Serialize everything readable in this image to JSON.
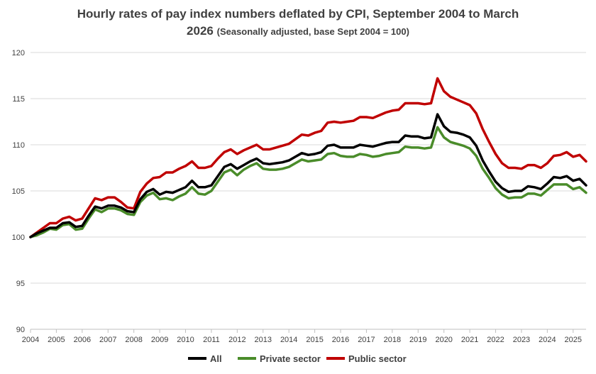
{
  "chart_data": {
    "type": "line",
    "title": "Hourly rates of pay index numbers  deflated by CPI, September 2004 to March",
    "title_line2": "2026",
    "subtitle": "(Seasonally adjusted, base Sept 2004 = 100)",
    "xlabel": "",
    "ylabel": "",
    "ylim": [
      90,
      120
    ],
    "yticks": [
      90,
      95,
      100,
      105,
      110,
      115,
      120
    ],
    "xlim": [
      2004.0,
      2025.5
    ],
    "xticks": [
      2004,
      2005,
      2006,
      2007,
      2008,
      2009,
      2010,
      2011,
      2012,
      2013,
      2014,
      2015,
      2016,
      2017,
      2018,
      2019,
      2020,
      2021,
      2022,
      2023,
      2024,
      2025
    ],
    "grid": "horizontal",
    "legend_position": "bottom",
    "series": [
      {
        "name": "All",
        "color": "#000000",
        "points": [
          [
            2004.0,
            100.0
          ],
          [
            2004.25,
            100.4
          ],
          [
            2004.5,
            100.7
          ],
          [
            2004.75,
            101.0
          ],
          [
            2005.0,
            101.0
          ],
          [
            2005.25,
            101.5
          ],
          [
            2005.5,
            101.6
          ],
          [
            2005.75,
            101.1
          ],
          [
            2006.0,
            101.2
          ],
          [
            2006.25,
            102.3
          ],
          [
            2006.5,
            103.3
          ],
          [
            2006.75,
            103.1
          ],
          [
            2007.0,
            103.4
          ],
          [
            2007.25,
            103.4
          ],
          [
            2007.5,
            103.2
          ],
          [
            2007.75,
            102.8
          ],
          [
            2008.0,
            102.7
          ],
          [
            2008.25,
            104.1
          ],
          [
            2008.5,
            104.9
          ],
          [
            2008.75,
            105.2
          ],
          [
            2009.0,
            104.6
          ],
          [
            2009.25,
            104.9
          ],
          [
            2009.5,
            104.8
          ],
          [
            2009.75,
            105.1
          ],
          [
            2010.0,
            105.4
          ],
          [
            2010.25,
            106.1
          ],
          [
            2010.5,
            105.4
          ],
          [
            2010.75,
            105.4
          ],
          [
            2011.0,
            105.6
          ],
          [
            2011.25,
            106.6
          ],
          [
            2011.5,
            107.6
          ],
          [
            2011.75,
            107.9
          ],
          [
            2012.0,
            107.4
          ],
          [
            2012.25,
            107.8
          ],
          [
            2012.5,
            108.2
          ],
          [
            2012.75,
            108.5
          ],
          [
            2013.0,
            108.0
          ],
          [
            2013.25,
            107.9
          ],
          [
            2013.5,
            108.0
          ],
          [
            2013.75,
            108.1
          ],
          [
            2014.0,
            108.3
          ],
          [
            2014.25,
            108.7
          ],
          [
            2014.5,
            109.1
          ],
          [
            2014.75,
            108.9
          ],
          [
            2015.0,
            109.0
          ],
          [
            2015.25,
            109.2
          ],
          [
            2015.5,
            109.9
          ],
          [
            2015.75,
            110.0
          ],
          [
            2016.0,
            109.7
          ],
          [
            2016.25,
            109.7
          ],
          [
            2016.5,
            109.7
          ],
          [
            2016.75,
            110.0
          ],
          [
            2017.0,
            109.9
          ],
          [
            2017.25,
            109.8
          ],
          [
            2017.5,
            110.0
          ],
          [
            2017.75,
            110.2
          ],
          [
            2018.0,
            110.3
          ],
          [
            2018.25,
            110.3
          ],
          [
            2018.5,
            111.0
          ],
          [
            2018.75,
            110.9
          ],
          [
            2019.0,
            110.9
          ],
          [
            2019.25,
            110.7
          ],
          [
            2019.5,
            110.8
          ],
          [
            2019.75,
            113.3
          ],
          [
            2020.0,
            112.0
          ],
          [
            2020.25,
            111.4
          ],
          [
            2020.5,
            111.3
          ],
          [
            2020.75,
            111.1
          ],
          [
            2021.0,
            110.8
          ],
          [
            2021.25,
            109.9
          ],
          [
            2021.5,
            108.3
          ],
          [
            2021.75,
            107.1
          ],
          [
            2022.0,
            106.0
          ],
          [
            2022.25,
            105.3
          ],
          [
            2022.5,
            104.9
          ],
          [
            2022.75,
            105.0
          ],
          [
            2023.0,
            105.0
          ],
          [
            2023.25,
            105.5
          ],
          [
            2023.5,
            105.4
          ],
          [
            2023.75,
            105.2
          ],
          [
            2024.0,
            105.8
          ],
          [
            2024.25,
            106.5
          ],
          [
            2024.5,
            106.4
          ],
          [
            2024.75,
            106.6
          ],
          [
            2025.0,
            106.1
          ],
          [
            2025.25,
            106.3
          ],
          [
            2025.5,
            105.6
          ]
        ]
      },
      {
        "name": "Private sector",
        "color": "#4a8c2a",
        "points": [
          [
            2004.0,
            100.0
          ],
          [
            2004.25,
            100.2
          ],
          [
            2004.5,
            100.5
          ],
          [
            2004.75,
            100.9
          ],
          [
            2005.0,
            100.8
          ],
          [
            2005.25,
            101.3
          ],
          [
            2005.5,
            101.4
          ],
          [
            2005.75,
            100.8
          ],
          [
            2006.0,
            100.9
          ],
          [
            2006.25,
            102.0
          ],
          [
            2006.5,
            103.0
          ],
          [
            2006.75,
            102.7
          ],
          [
            2007.0,
            103.1
          ],
          [
            2007.25,
            103.1
          ],
          [
            2007.5,
            102.9
          ],
          [
            2007.75,
            102.5
          ],
          [
            2008.0,
            102.4
          ],
          [
            2008.25,
            103.8
          ],
          [
            2008.5,
            104.5
          ],
          [
            2008.75,
            104.8
          ],
          [
            2009.0,
            104.1
          ],
          [
            2009.25,
            104.2
          ],
          [
            2009.5,
            104.0
          ],
          [
            2009.75,
            104.4
          ],
          [
            2010.0,
            104.7
          ],
          [
            2010.25,
            105.4
          ],
          [
            2010.5,
            104.7
          ],
          [
            2010.75,
            104.6
          ],
          [
            2011.0,
            105.0
          ],
          [
            2011.25,
            106.0
          ],
          [
            2011.5,
            107.0
          ],
          [
            2011.75,
            107.3
          ],
          [
            2012.0,
            106.7
          ],
          [
            2012.25,
            107.3
          ],
          [
            2012.5,
            107.7
          ],
          [
            2012.75,
            108.0
          ],
          [
            2013.0,
            107.4
          ],
          [
            2013.25,
            107.3
          ],
          [
            2013.5,
            107.3
          ],
          [
            2013.75,
            107.4
          ],
          [
            2014.0,
            107.6
          ],
          [
            2014.25,
            108.0
          ],
          [
            2014.5,
            108.4
          ],
          [
            2014.75,
            108.2
          ],
          [
            2015.0,
            108.3
          ],
          [
            2015.25,
            108.4
          ],
          [
            2015.5,
            109.0
          ],
          [
            2015.75,
            109.1
          ],
          [
            2016.0,
            108.8
          ],
          [
            2016.25,
            108.7
          ],
          [
            2016.5,
            108.7
          ],
          [
            2016.75,
            109.0
          ],
          [
            2017.0,
            108.9
          ],
          [
            2017.25,
            108.7
          ],
          [
            2017.5,
            108.8
          ],
          [
            2017.75,
            109.0
          ],
          [
            2018.0,
            109.1
          ],
          [
            2018.25,
            109.2
          ],
          [
            2018.5,
            109.8
          ],
          [
            2018.75,
            109.7
          ],
          [
            2019.0,
            109.7
          ],
          [
            2019.25,
            109.6
          ],
          [
            2019.5,
            109.7
          ],
          [
            2019.75,
            111.9
          ],
          [
            2020.0,
            110.8
          ],
          [
            2020.25,
            110.3
          ],
          [
            2020.5,
            110.1
          ],
          [
            2020.75,
            109.9
          ],
          [
            2021.0,
            109.6
          ],
          [
            2021.25,
            108.8
          ],
          [
            2021.5,
            107.4
          ],
          [
            2021.75,
            106.4
          ],
          [
            2022.0,
            105.3
          ],
          [
            2022.25,
            104.6
          ],
          [
            2022.5,
            104.2
          ],
          [
            2022.75,
            104.3
          ],
          [
            2023.0,
            104.3
          ],
          [
            2023.25,
            104.7
          ],
          [
            2023.5,
            104.7
          ],
          [
            2023.75,
            104.5
          ],
          [
            2024.0,
            105.1
          ],
          [
            2024.25,
            105.7
          ],
          [
            2024.5,
            105.7
          ],
          [
            2024.75,
            105.7
          ],
          [
            2025.0,
            105.2
          ],
          [
            2025.25,
            105.4
          ],
          [
            2025.5,
            104.8
          ]
        ]
      },
      {
        "name": "Public sector",
        "color": "#c00000",
        "points": [
          [
            2004.0,
            100.0
          ],
          [
            2004.25,
            100.5
          ],
          [
            2004.5,
            101.0
          ],
          [
            2004.75,
            101.5
          ],
          [
            2005.0,
            101.5
          ],
          [
            2005.25,
            102.0
          ],
          [
            2005.5,
            102.2
          ],
          [
            2005.75,
            101.8
          ],
          [
            2006.0,
            102.0
          ],
          [
            2006.25,
            103.1
          ],
          [
            2006.5,
            104.2
          ],
          [
            2006.75,
            104.0
          ],
          [
            2007.0,
            104.3
          ],
          [
            2007.25,
            104.3
          ],
          [
            2007.5,
            103.8
          ],
          [
            2007.75,
            103.2
          ],
          [
            2008.0,
            103.1
          ],
          [
            2008.25,
            104.9
          ],
          [
            2008.5,
            105.8
          ],
          [
            2008.75,
            106.4
          ],
          [
            2009.0,
            106.5
          ],
          [
            2009.25,
            107.0
          ],
          [
            2009.5,
            107.0
          ],
          [
            2009.75,
            107.4
          ],
          [
            2010.0,
            107.7
          ],
          [
            2010.25,
            108.2
          ],
          [
            2010.5,
            107.5
          ],
          [
            2010.75,
            107.5
          ],
          [
            2011.0,
            107.7
          ],
          [
            2011.25,
            108.5
          ],
          [
            2011.5,
            109.2
          ],
          [
            2011.75,
            109.5
          ],
          [
            2012.0,
            109.0
          ],
          [
            2012.25,
            109.4
          ],
          [
            2012.5,
            109.7
          ],
          [
            2012.75,
            110.0
          ],
          [
            2013.0,
            109.5
          ],
          [
            2013.25,
            109.5
          ],
          [
            2013.5,
            109.7
          ],
          [
            2013.75,
            109.9
          ],
          [
            2014.0,
            110.1
          ],
          [
            2014.25,
            110.6
          ],
          [
            2014.5,
            111.1
          ],
          [
            2014.75,
            111.0
          ],
          [
            2015.0,
            111.3
          ],
          [
            2015.25,
            111.5
          ],
          [
            2015.5,
            112.4
          ],
          [
            2015.75,
            112.5
          ],
          [
            2016.0,
            112.4
          ],
          [
            2016.25,
            112.5
          ],
          [
            2016.5,
            112.6
          ],
          [
            2016.75,
            113.0
          ],
          [
            2017.0,
            113.0
          ],
          [
            2017.25,
            112.9
          ],
          [
            2017.5,
            113.2
          ],
          [
            2017.75,
            113.5
          ],
          [
            2018.0,
            113.7
          ],
          [
            2018.25,
            113.8
          ],
          [
            2018.5,
            114.5
          ],
          [
            2018.75,
            114.5
          ],
          [
            2019.0,
            114.5
          ],
          [
            2019.25,
            114.4
          ],
          [
            2019.5,
            114.5
          ],
          [
            2019.75,
            117.2
          ],
          [
            2020.0,
            115.8
          ],
          [
            2020.25,
            115.2
          ],
          [
            2020.5,
            114.9
          ],
          [
            2020.75,
            114.6
          ],
          [
            2021.0,
            114.3
          ],
          [
            2021.25,
            113.4
          ],
          [
            2021.5,
            111.7
          ],
          [
            2021.75,
            110.3
          ],
          [
            2022.0,
            109.0
          ],
          [
            2022.25,
            108.0
          ],
          [
            2022.5,
            107.5
          ],
          [
            2022.75,
            107.5
          ],
          [
            2023.0,
            107.4
          ],
          [
            2023.25,
            107.8
          ],
          [
            2023.5,
            107.8
          ],
          [
            2023.75,
            107.5
          ],
          [
            2024.0,
            108.0
          ],
          [
            2024.25,
            108.8
          ],
          [
            2024.5,
            108.9
          ],
          [
            2024.75,
            109.2
          ],
          [
            2025.0,
            108.7
          ],
          [
            2025.25,
            108.9
          ],
          [
            2025.5,
            108.2
          ]
        ]
      }
    ]
  }
}
